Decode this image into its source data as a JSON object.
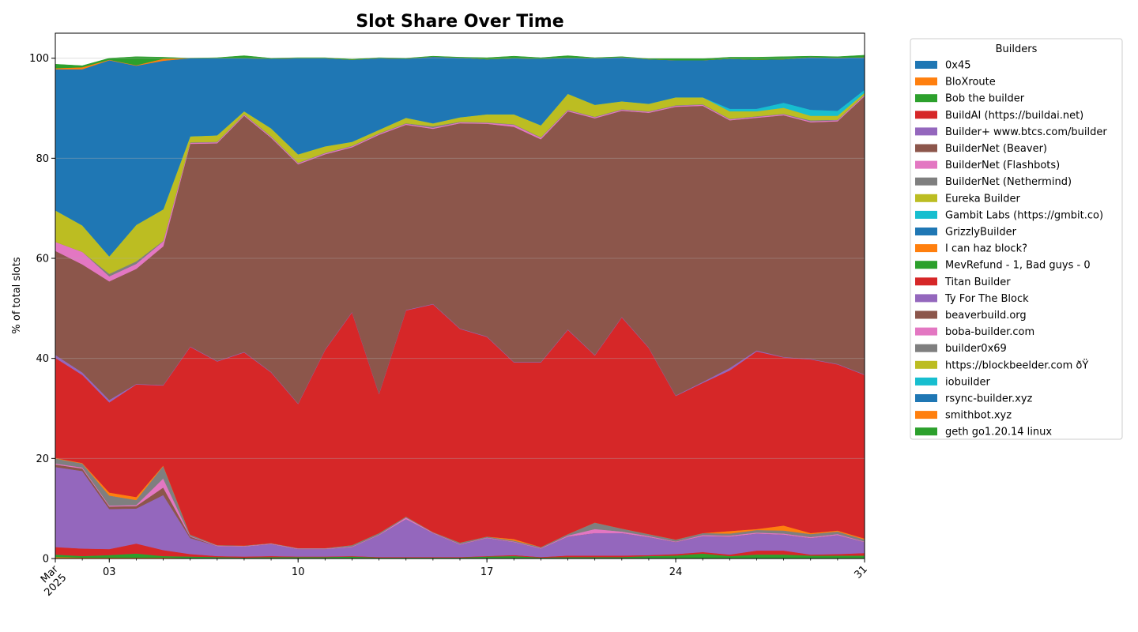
{
  "chart_data": {
    "type": "area",
    "stacked": true,
    "title": "Slot Share Over Time",
    "ylabel": "% of total slots",
    "xlabel": "",
    "ylim": [
      0,
      105
    ],
    "xlim": [
      "2025-03-01",
      "2025-03-31"
    ],
    "x_ticks": [
      {
        "date": "2025-03-01",
        "label": "Mar\n2025"
      },
      {
        "date": "2025-03-03",
        "label": "03"
      },
      {
        "date": "2025-03-10",
        "label": "10"
      },
      {
        "date": "2025-03-17",
        "label": "17"
      },
      {
        "date": "2025-03-24",
        "label": "24"
      },
      {
        "date": "2025-03-31",
        "label": "31"
      }
    ],
    "y_ticks": [
      0,
      20,
      40,
      60,
      80,
      100
    ],
    "grid": "horizontal",
    "legend": {
      "title": "Builders",
      "placement": "outside-right"
    },
    "x": [
      "2025-03-01",
      "2025-03-02",
      "2025-03-03",
      "2025-03-04",
      "2025-03-05",
      "2025-03-06",
      "2025-03-07",
      "2025-03-08",
      "2025-03-09",
      "2025-03-10",
      "2025-03-11",
      "2025-03-12",
      "2025-03-13",
      "2025-03-14",
      "2025-03-15",
      "2025-03-16",
      "2025-03-17",
      "2025-03-18",
      "2025-03-19",
      "2025-03-20",
      "2025-03-21",
      "2025-03-22",
      "2025-03-23",
      "2025-03-24",
      "2025-03-25",
      "2025-03-26",
      "2025-03-27",
      "2025-03-28",
      "2025-03-29",
      "2025-03-30",
      "2025-03-31"
    ],
    "series": [
      {
        "name": "0x45",
        "color": "#1f77b4",
        "values": [
          0,
          0,
          0,
          0,
          0,
          0,
          0,
          0,
          0,
          0,
          0,
          0,
          0,
          0,
          0,
          0,
          0,
          0,
          0,
          0,
          0,
          0,
          0,
          0,
          0,
          0,
          0,
          0,
          0,
          0,
          0
        ]
      },
      {
        "name": "BloXroute",
        "color": "#ff7f0e",
        "values": [
          0.3,
          0.2,
          0.2,
          0.2,
          0.2,
          0.1,
          0,
          0,
          0,
          0,
          0,
          0,
          0,
          0,
          0,
          0,
          0,
          0,
          0,
          0,
          0,
          0,
          0,
          0,
          0,
          0,
          0,
          0,
          0,
          0,
          0
        ]
      },
      {
        "name": "Bob the builder",
        "color": "#2ca02c",
        "values": [
          0.5,
          0.3,
          0.5,
          0.8,
          0.3,
          0.3,
          0.3,
          0.2,
          0.3,
          0.3,
          0.3,
          0.4,
          0.2,
          0.2,
          0.2,
          0.2,
          0.4,
          0.5,
          0.2,
          0.3,
          0.3,
          0.3,
          0.5,
          0.6,
          1.0,
          0.5,
          0.8,
          0.8,
          0.6,
          0.6,
          0.6
        ]
      },
      {
        "name": "BuildAI (https://buildai.net)",
        "color": "#d62728",
        "values": [
          1.5,
          1.5,
          1.2,
          2.0,
          1.2,
          0.5,
          0.2,
          0.2,
          0.2,
          0.1,
          0.1,
          0.1,
          0.1,
          0.1,
          0.1,
          0.1,
          0.1,
          0.2,
          0.1,
          0.3,
          0.3,
          0.3,
          0.2,
          0.3,
          0.3,
          0.3,
          0.8,
          0.8,
          0.2,
          0.3,
          0.5
        ]
      },
      {
        "name": "Builder+ www.btcs.com/builder",
        "color": "#9467bd",
        "values": [
          16.0,
          15.5,
          8.0,
          7.0,
          11.0,
          3.2,
          2.0,
          2.0,
          2.4,
          1.5,
          1.5,
          1.8,
          4.4,
          7.6,
          4.8,
          2.5,
          3.6,
          2.6,
          1.7,
          3.8,
          4.5,
          4.5,
          3.6,
          2.4,
          3.2,
          3.6,
          3.4,
          3.2,
          3.3,
          3.8,
          2.2
        ]
      },
      {
        "name": "BuilderNet (Beaver)",
        "color": "#8c564b",
        "values": [
          0.5,
          0.5,
          0.5,
          0.5,
          1.5,
          0.3,
          0,
          0,
          0,
          0,
          0,
          0,
          0,
          0,
          0,
          0,
          0,
          0,
          0,
          0,
          0,
          0,
          0,
          0,
          0,
          0,
          0,
          0,
          0,
          0,
          0
        ]
      },
      {
        "name": "BuilderNet (Flashbots)",
        "color": "#e377c2",
        "values": [
          0.2,
          0.2,
          0.2,
          0.2,
          1.8,
          0.1,
          0.1,
          0.1,
          0.1,
          0.1,
          0.1,
          0.1,
          0.1,
          0.3,
          0.1,
          0.1,
          0.1,
          0.1,
          0.1,
          0.2,
          0.8,
          0.3,
          0.2,
          0.1,
          0.2,
          0.2,
          0.2,
          0.2,
          0.2,
          0.2,
          0.1
        ]
      },
      {
        "name": "BuilderNet (Nethermind)",
        "color": "#7f7f7f",
        "values": [
          1.0,
          0.8,
          2.0,
          1.0,
          2.5,
          0.3,
          0.1,
          0.1,
          0.1,
          0.1,
          0.1,
          0.3,
          0.3,
          0.2,
          0.1,
          0.3,
          0.2,
          0.2,
          0.2,
          0.3,
          1.3,
          0.6,
          0.4,
          0.4,
          0.4,
          0.4,
          0.5,
          0.6,
          0.6,
          0.5,
          0.4
        ]
      },
      {
        "name": "Eureka Builder",
        "color": "#bcbd22",
        "values": [
          0,
          0,
          0,
          0,
          0,
          0,
          0,
          0,
          0,
          0,
          0,
          0,
          0,
          0,
          0,
          0,
          0,
          0,
          0,
          0,
          0,
          0,
          0,
          0,
          0,
          0,
          0,
          0,
          0,
          0,
          0
        ]
      },
      {
        "name": "Gambit Labs (https://gmbit.co)",
        "color": "#17becf",
        "values": [
          0,
          0,
          0,
          0,
          0,
          0,
          0,
          0,
          0,
          0,
          0,
          0,
          0,
          0,
          0,
          0,
          0,
          0,
          0,
          0,
          0,
          0,
          0,
          0,
          0,
          0,
          0,
          0,
          0,
          0,
          0
        ]
      },
      {
        "name": "GrizzlyBuilder",
        "color": "#1f77b4",
        "values": [
          0,
          0,
          0,
          0,
          0,
          0,
          0,
          0,
          0,
          0,
          0,
          0,
          0,
          0,
          0,
          0,
          0,
          0,
          0,
          0,
          0,
          0,
          0,
          0,
          0,
          0,
          0,
          0,
          0,
          0,
          0
        ]
      },
      {
        "name": "I can haz block?",
        "color": "#ff7f0e",
        "values": [
          0.1,
          0.1,
          0.6,
          0.6,
          0.1,
          0,
          0,
          0,
          0,
          0,
          0,
          0,
          0,
          0,
          0,
          0,
          0,
          0.3,
          0,
          0,
          0,
          0,
          0,
          0,
          0,
          0.5,
          0.2,
          1.0,
          0.2,
          0.2,
          0.2
        ]
      },
      {
        "name": "MevRefund - 1, Bad guys - 0",
        "color": "#2ca02c",
        "values": [
          0,
          0,
          0,
          0,
          0,
          0,
          0,
          0,
          0,
          0,
          0,
          0,
          0,
          0,
          0,
          0,
          0,
          0,
          0,
          0,
          0,
          0,
          0,
          0,
          0,
          0,
          0,
          0,
          0,
          0,
          0
        ]
      },
      {
        "name": "Titan Builder",
        "color": "#d62728",
        "values": [
          20.0,
          17.6,
          18.0,
          22.5,
          16.0,
          37.5,
          36.7,
          38.6,
          34.1,
          28.8,
          39.6,
          46.5,
          27.8,
          41.2,
          45.5,
          42.7,
          39.9,
          35.3,
          36.9,
          40.8,
          33.4,
          42.2,
          37.2,
          28.7,
          30.0,
          32.1,
          35.5,
          33.6,
          34.7,
          33.2,
          32.7
        ]
      },
      {
        "name": "Ty For The Block",
        "color": "#9467bd",
        "values": [
          0.6,
          0.5,
          0.5,
          0.1,
          0.1,
          0.1,
          0.1,
          0.1,
          0.1,
          0.1,
          0.1,
          0.1,
          0.1,
          0.1,
          0.1,
          0.1,
          0.1,
          0.1,
          0.1,
          0.1,
          0.1,
          0.1,
          0.1,
          0.1,
          0.2,
          0.5,
          0.2,
          0.1,
          0.1,
          0.1,
          0.1
        ]
      },
      {
        "name": "beaverbuild.org",
        "color": "#8c564b",
        "values": [
          20.8,
          21.6,
          23.7,
          23.0,
          27.7,
          40.5,
          43.5,
          47.2,
          46.8,
          47.8,
          39.0,
          32.9,
          51.7,
          37.0,
          35.0,
          41.0,
          42.5,
          47.0,
          44.5,
          43.6,
          47.3,
          41.2,
          46.9,
          57.7,
          55.2,
          49.5,
          46.5,
          48.3,
          47.3,
          48.5,
          55.6
        ]
      },
      {
        "name": "boba-builder.com",
        "color": "#e377c2",
        "values": [
          1.8,
          2.5,
          1.0,
          1.0,
          1.0,
          0.2,
          0.2,
          0.2,
          0.2,
          0.2,
          0.2,
          0.2,
          0.2,
          0.2,
          0.2,
          0.2,
          0.2,
          0.4,
          0.3,
          0.2,
          0.2,
          0.2,
          0.2,
          0.2,
          0.2,
          0.2,
          0.2,
          0.2,
          0.2,
          0.2,
          0.2
        ]
      },
      {
        "name": "builder0x69",
        "color": "#7f7f7f",
        "values": [
          0,
          0,
          0.5,
          0.5,
          0.1,
          0.1,
          0.1,
          0.1,
          0.1,
          0.1,
          0.1,
          0.1,
          0.1,
          0.1,
          0.3,
          0.1,
          0.1,
          0.1,
          0.1,
          0.1,
          0.1,
          0.1,
          0.1,
          0.1,
          0.1,
          0.1,
          0.1,
          0.1,
          0.2,
          0.1,
          0.1
        ]
      },
      {
        "name": "https://blockbeelder.com ðŸ",
        "color": "#bcbd22",
        "values": [
          6.3,
          5.3,
          3.5,
          7.3,
          6.3,
          1.2,
          1.3,
          0.6,
          1.6,
          1.7,
          1.3,
          0.8,
          0.7,
          1.1,
          0.6,
          0.9,
          1.6,
          2.0,
          2.4,
          3.2,
          2.4,
          1.6,
          1.5,
          1.6,
          1.4,
          1.5,
          1.0,
          1.2,
          0.9,
          0.8,
          0.4
        ]
      },
      {
        "name": "iobuilder",
        "color": "#17becf",
        "values": [
          0,
          0,
          0,
          0,
          0,
          0,
          0,
          0,
          0,
          0,
          0,
          0,
          0,
          0,
          0,
          0,
          0,
          0,
          0,
          0,
          0,
          0,
          0,
          0,
          0,
          0.5,
          0.5,
          1.0,
          1.2,
          1.0,
          0.6
        ]
      },
      {
        "name": "rsync-builder.xyz",
        "color": "#1f77b4",
        "values": [
          28.2,
          31.2,
          39.2,
          31.8,
          29.7,
          15.6,
          15.4,
          10.6,
          13.9,
          19.2,
          17.6,
          16.4,
          14.3,
          11.8,
          13.3,
          11.9,
          11.0,
          11.2,
          13.3,
          7.2,
          9.3,
          8.8,
          8.9,
          7.4,
          7.4,
          10.0,
          9.8,
          8.7,
          10.5,
          10.6,
          6.5
        ]
      },
      {
        "name": "smithbot.xyz",
        "color": "#ff7f0e",
        "values": [
          0.2,
          0.4,
          0.1,
          0.1,
          0.4,
          0,
          0,
          0,
          0,
          0,
          0,
          0,
          0,
          0,
          0,
          0,
          0,
          0,
          0,
          0,
          0,
          0,
          0,
          0,
          0,
          0,
          0,
          0,
          0,
          0,
          0
        ]
      },
      {
        "name": "geth go1.20.14 linux",
        "color": "#2ca02c",
        "values": [
          0.8,
          0.3,
          0.3,
          1.7,
          0.3,
          0,
          0.1,
          0.5,
          0.1,
          0.1,
          0.1,
          0.1,
          0.1,
          0.1,
          0.1,
          0.1,
          0.3,
          0.4,
          0.2,
          0.4,
          0.1,
          0.1,
          0.1,
          0.3,
          0.3,
          0.3,
          0.5,
          0.5,
          0.2,
          0.2,
          0.4
        ]
      }
    ]
  }
}
